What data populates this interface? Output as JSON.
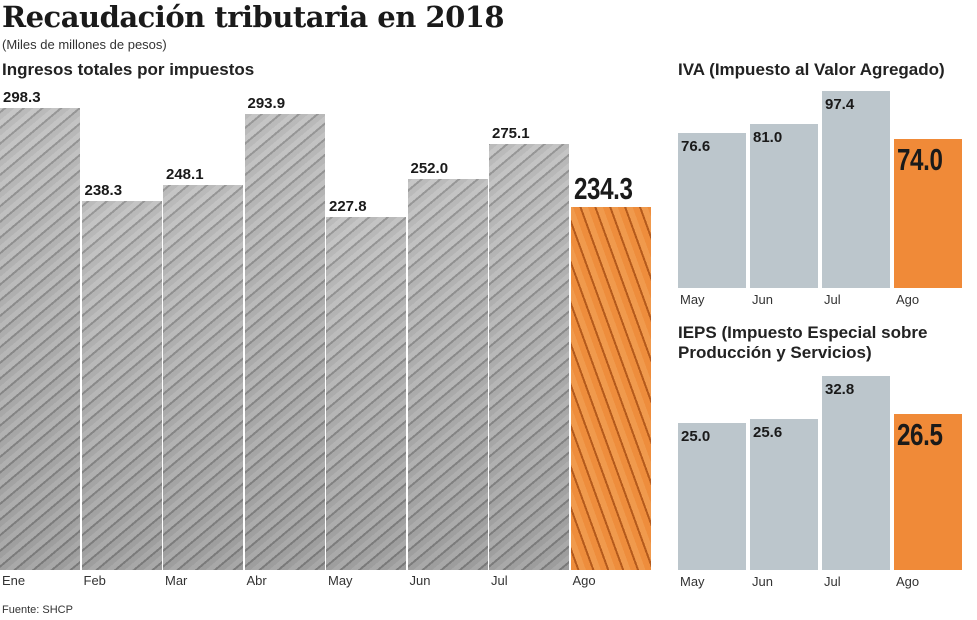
{
  "title": "Recaudación tributaria en 2018",
  "subtitle": "(Miles de millones de pesos)",
  "source": "Fuente: SHCP",
  "colors": {
    "highlight": "#f08a38",
    "bar": "#bcc6cc"
  },
  "chart_data": [
    {
      "type": "bar",
      "title": "Ingresos totales por impuestos",
      "categories": [
        "Ene",
        "Feb",
        "Mar",
        "Abr",
        "May",
        "Jun",
        "Jul",
        "Ago"
      ],
      "values": [
        298.3,
        238.3,
        248.1,
        293.9,
        227.8,
        252.0,
        275.1,
        234.3
      ],
      "labels": [
        "298.3",
        "238.3",
        "248.1",
        "293.9",
        "227.8",
        "252.0",
        "275.1",
        "234.3"
      ],
      "highlight": "Ago"
    },
    {
      "type": "bar",
      "title": "IVA (Impuesto al Valor Agregado)",
      "categories": [
        "May",
        "Jun",
        "Jul",
        "Ago"
      ],
      "values": [
        76.6,
        81.0,
        97.4,
        74.0
      ],
      "labels": [
        "76.6",
        "81.0",
        "97.4",
        "74.0"
      ],
      "highlight": "Ago"
    },
    {
      "type": "bar",
      "title": "IEPS (Impuesto Especial sobre Producción y Servicios)",
      "categories": [
        "May",
        "Jun",
        "Jul",
        "Ago"
      ],
      "values": [
        25.0,
        25.6,
        32.8,
        26.5
      ],
      "labels": [
        "25.0",
        "25.6",
        "32.8",
        "26.5"
      ],
      "highlight": "Ago"
    }
  ]
}
